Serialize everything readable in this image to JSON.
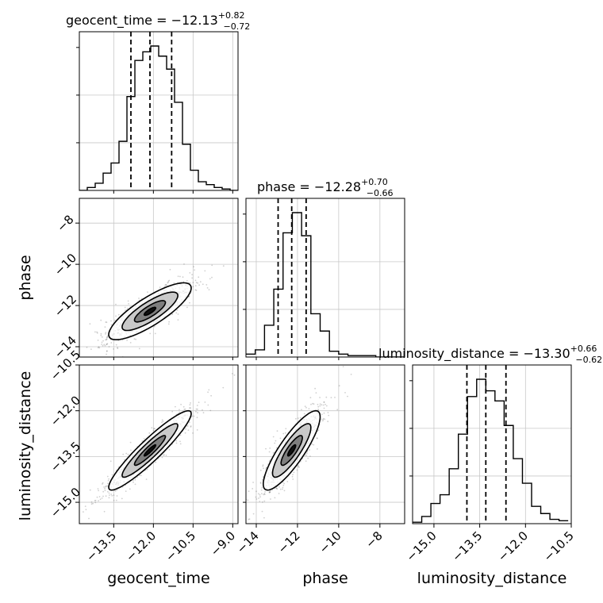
{
  "chart_data": {
    "type": "corner",
    "parameters": [
      "geocent_time",
      "phase",
      "luminosity_distance"
    ],
    "titles": [
      {
        "param": "geocent_time",
        "prefix": "geocent_time = ",
        "median": "−12.13",
        "plus": "+0.82",
        "minus": "−0.72"
      },
      {
        "param": "phase",
        "prefix": "phase = ",
        "median": "−12.28",
        "plus": "+0.70",
        "minus": "−0.66"
      },
      {
        "param": "luminosity_distance",
        "prefix": "luminosity_distance = ",
        "median": "−13.30",
        "plus": "+0.66",
        "minus": "−0.62"
      }
    ],
    "axis_ranges": {
      "geocent_time": [
        -14.8,
        -8.8
      ],
      "phase": [
        -14.5,
        -6.8
      ],
      "luminosity_distance": [
        -15.7,
        -10.5
      ]
    },
    "ticks": {
      "geocent_time": [
        {
          "v": -13.5,
          "label": "−13.5"
        },
        {
          "v": -12.0,
          "label": "−12.0"
        },
        {
          "v": -10.5,
          "label": "−10.5"
        },
        {
          "v": -9.0,
          "label": "−9.0"
        }
      ],
      "phase": [
        {
          "v": -14,
          "label": "−14"
        },
        {
          "v": -12,
          "label": "−12"
        },
        {
          "v": -10,
          "label": "−10"
        },
        {
          "v": -8,
          "label": "−8"
        }
      ],
      "luminosity_distance": [
        {
          "v": -15.0,
          "label": "−15.0"
        },
        {
          "v": -13.5,
          "label": "−13.5"
        },
        {
          "v": -12.0,
          "label": "−12.0"
        },
        {
          "v": -10.5,
          "label": "−10.5"
        }
      ]
    },
    "quantiles": {
      "geocent_time": [
        -12.85,
        -12.13,
        -11.31
      ],
      "phase": [
        -12.94,
        -12.28,
        -11.58
      ],
      "luminosity_distance": [
        -13.92,
        -13.3,
        -12.64
      ]
    },
    "histograms": {
      "geocent_time": {
        "edges": [
          -14.8,
          -14.5,
          -14.2,
          -13.9,
          -13.6,
          -13.3,
          -13.0,
          -12.7,
          -12.4,
          -12.1,
          -11.8,
          -11.5,
          -11.2,
          -10.9,
          -10.6,
          -10.3,
          -10.0,
          -9.7,
          -9.4,
          -9.1,
          -8.8
        ],
        "counts": [
          0,
          0.02,
          0.05,
          0.12,
          0.19,
          0.34,
          0.65,
          0.9,
          0.96,
          1.0,
          0.93,
          0.84,
          0.61,
          0.32,
          0.14,
          0.06,
          0.04,
          0.02,
          0.01,
          0
        ]
      },
      "phase": {
        "edges": [
          -14.5,
          -14.05,
          -13.6,
          -13.15,
          -12.7,
          -12.25,
          -11.8,
          -11.35,
          -10.9,
          -10.45,
          -10.0,
          -9.55,
          -9.1,
          -8.65,
          -8.2,
          -7.75,
          -7.3,
          -6.8
        ],
        "counts": [
          0.02,
          0.05,
          0.22,
          0.47,
          0.86,
          1.0,
          0.84,
          0.3,
          0.18,
          0.04,
          0.02,
          0.01,
          0.01,
          0.01,
          0,
          0,
          0
        ]
      },
      "luminosity_distance": {
        "edges": [
          -15.7,
          -15.4,
          -15.1,
          -14.8,
          -14.5,
          -14.2,
          -13.9,
          -13.6,
          -13.3,
          -13.0,
          -12.7,
          -12.4,
          -12.1,
          -11.8,
          -11.5,
          -11.2,
          -10.9,
          -10.6
        ],
        "counts": [
          0.01,
          0.05,
          0.14,
          0.2,
          0.38,
          0.62,
          0.88,
          1.0,
          0.92,
          0.85,
          0.68,
          0.45,
          0.28,
          0.12,
          0.07,
          0.03,
          0.02
        ]
      }
    },
    "joint": [
      {
        "x": "geocent_time",
        "y": "phase",
        "center": [
          -12.13,
          -12.28
        ],
        "sd": [
          0.78,
          0.69
        ],
        "rho": 0.82
      },
      {
        "x": "geocent_time",
        "y": "luminosity_distance",
        "center": [
          -12.13,
          -13.3
        ],
        "sd": [
          0.78,
          0.65
        ],
        "rho": 0.93
      },
      {
        "x": "phase",
        "y": "luminosity_distance",
        "center": [
          -12.28,
          -13.3
        ],
        "sd": [
          0.69,
          0.65
        ],
        "rho": 0.85
      }
    ],
    "grid": true
  }
}
